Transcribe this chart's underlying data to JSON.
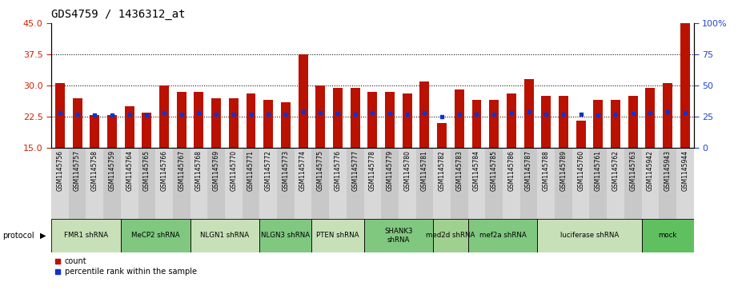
{
  "title": "GDS4759 / 1436312_at",
  "samples": [
    "GSM1145756",
    "GSM1145757",
    "GSM1145758",
    "GSM1145759",
    "GSM1145764",
    "GSM1145765",
    "GSM1145766",
    "GSM1145767",
    "GSM1145768",
    "GSM1145769",
    "GSM1145770",
    "GSM1145771",
    "GSM1145772",
    "GSM1145773",
    "GSM1145774",
    "GSM1145775",
    "GSM1145776",
    "GSM1145777",
    "GSM1145778",
    "GSM1145779",
    "GSM1145780",
    "GSM1145781",
    "GSM1145782",
    "GSM1145783",
    "GSM1145784",
    "GSM1145785",
    "GSM1145786",
    "GSM1145787",
    "GSM1145788",
    "GSM1145789",
    "GSM1145760",
    "GSM1145761",
    "GSM1145762",
    "GSM1145763",
    "GSM1145942",
    "GSM1145943",
    "GSM1145944"
  ],
  "counts": [
    30.5,
    27.0,
    23.0,
    23.0,
    25.0,
    23.5,
    30.0,
    28.5,
    28.5,
    27.0,
    27.0,
    28.0,
    26.5,
    26.0,
    37.5,
    30.0,
    29.5,
    29.5,
    28.5,
    28.5,
    28.0,
    31.0,
    21.0,
    29.0,
    26.5,
    26.5,
    28.0,
    31.5,
    27.5,
    27.5,
    21.5,
    26.5,
    26.5,
    27.5,
    29.5,
    30.5,
    45.0
  ],
  "percentile_vals": [
    28.3,
    27.0,
    26.5,
    26.5,
    26.8,
    26.5,
    28.5,
    27.3,
    28.0,
    27.0,
    27.3,
    27.3,
    27.3,
    27.0,
    28.8,
    28.3,
    27.8,
    27.3,
    28.0,
    27.8,
    27.0,
    28.3,
    25.3,
    27.3,
    27.3,
    27.0,
    28.0,
    28.8,
    27.3,
    27.3,
    27.0,
    26.5,
    27.3,
    27.8,
    28.3,
    28.8,
    28.0
  ],
  "protocols": [
    {
      "label": "FMR1 shRNA",
      "start": 0,
      "end": 3,
      "color": "#c8e0b8"
    },
    {
      "label": "MeCP2 shRNA",
      "start": 4,
      "end": 7,
      "color": "#80c880"
    },
    {
      "label": "NLGN1 shRNA",
      "start": 8,
      "end": 11,
      "color": "#c8e0b8"
    },
    {
      "label": "NLGN3 shRNA",
      "start": 12,
      "end": 14,
      "color": "#80c880"
    },
    {
      "label": "PTEN shRNA",
      "start": 15,
      "end": 17,
      "color": "#c8e0b8"
    },
    {
      "label": "SHANK3\nshRNA",
      "start": 18,
      "end": 21,
      "color": "#80c880"
    },
    {
      "label": "med2d shRNA",
      "start": 22,
      "end": 23,
      "color": "#a0d090"
    },
    {
      "label": "mef2a shRNA",
      "start": 24,
      "end": 27,
      "color": "#80c880"
    },
    {
      "label": "luciferase shRNA",
      "start": 28,
      "end": 33,
      "color": "#c8e0b8"
    },
    {
      "label": "mock",
      "start": 34,
      "end": 36,
      "color": "#60c060"
    }
  ],
  "ylim_left": [
    15,
    45
  ],
  "ylim_right": [
    0,
    100
  ],
  "yticks_left": [
    15,
    22.5,
    30,
    37.5,
    45
  ],
  "yticks_right": [
    0,
    25,
    50,
    75,
    100
  ],
  "bar_color": "#bb1100",
  "dot_color": "#1133cc",
  "left_axis_color": "#cc2200",
  "right_axis_color": "#2244cc",
  "grid_yticks": [
    22.5,
    30,
    37.5
  ],
  "tick_bg_even": "#d8d8d8",
  "tick_bg_odd": "#c8c8c8"
}
